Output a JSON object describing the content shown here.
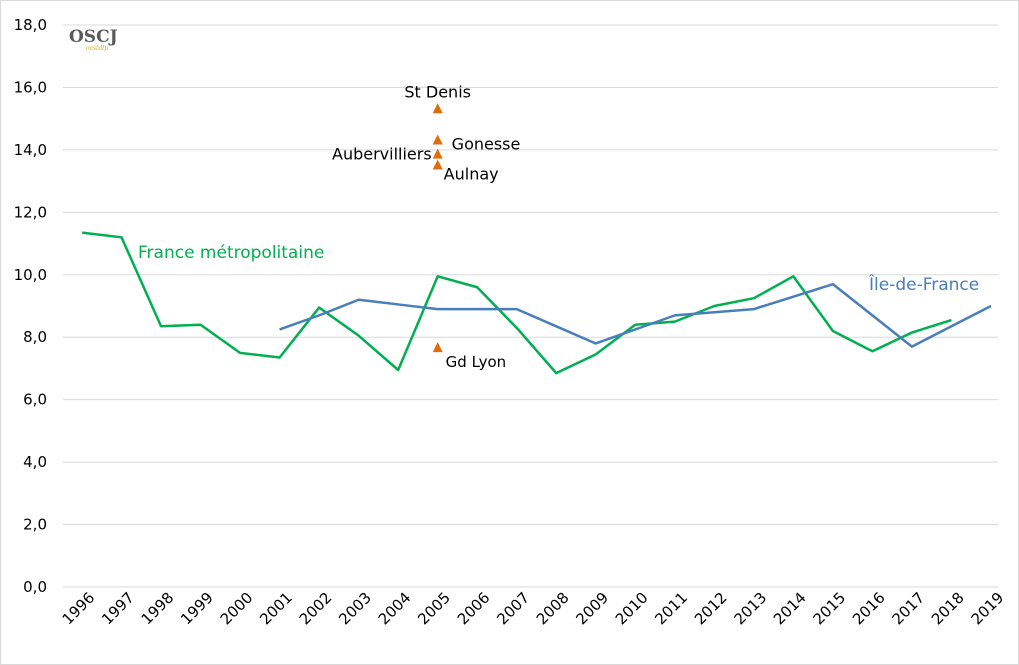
{
  "chart_data": {
    "type": "line",
    "title": "",
    "xlabel": "",
    "ylabel": "",
    "ylim": [
      0,
      18
    ],
    "yticks": [
      "0,0",
      "2,0",
      "4,0",
      "6,0",
      "8,0",
      "10,0",
      "12,0",
      "14,0",
      "16,0",
      "18,0"
    ],
    "ytick_values": [
      0,
      2,
      4,
      6,
      8,
      10,
      12,
      14,
      16,
      18
    ],
    "grid": true,
    "categories": [
      "1996",
      "1997",
      "1998",
      "1999",
      "2000",
      "2001",
      "2002",
      "2003",
      "2004",
      "2005",
      "2006",
      "2007",
      "2008",
      "2009",
      "2010",
      "2011",
      "2012",
      "2013",
      "2014",
      "2015",
      "2016",
      "2017",
      "2018",
      "2019"
    ],
    "series": [
      {
        "name": "France métropolitaine",
        "color": "#00b050",
        "values": [
          11.35,
          11.2,
          8.35,
          8.4,
          7.5,
          7.35,
          8.95,
          8.05,
          6.95,
          9.95,
          9.6,
          8.3,
          6.85,
          7.45,
          8.4,
          8.5,
          9.0,
          9.25,
          9.95,
          8.2,
          7.55,
          8.15,
          8.55,
          null
        ]
      },
      {
        "name": "Île-de-France",
        "color": "#4a7ebb",
        "values": [
          null,
          null,
          null,
          null,
          null,
          8.25,
          8.7,
          9.2,
          9.05,
          8.9,
          8.9,
          8.9,
          8.35,
          7.8,
          8.25,
          8.7,
          8.8,
          8.9,
          9.3,
          9.7,
          8.7,
          7.7,
          8.35,
          9.0
        ]
      }
    ],
    "points": [
      {
        "label": "St Denis",
        "x": "2005",
        "y": 15.3
      },
      {
        "label": "Gonesse",
        "x": "2005",
        "y": 14.3
      },
      {
        "label": "Aubervilliers",
        "x": "2005",
        "y": 13.85
      },
      {
        "label": "Aulnay",
        "x": "2005",
        "y": 13.5
      },
      {
        "label": "Gd Lyon",
        "x": "2005",
        "y": 7.65
      }
    ],
    "point_color": "#e36c0a",
    "series_labels": {
      "france": "France métropolitaine",
      "idf": "Île-de-France"
    }
  },
  "logo": {
    "text": "OSCJ",
    "subtext": "ocstdlp",
    "color": "#5a5a5a",
    "subcolor": "#e6a817"
  }
}
